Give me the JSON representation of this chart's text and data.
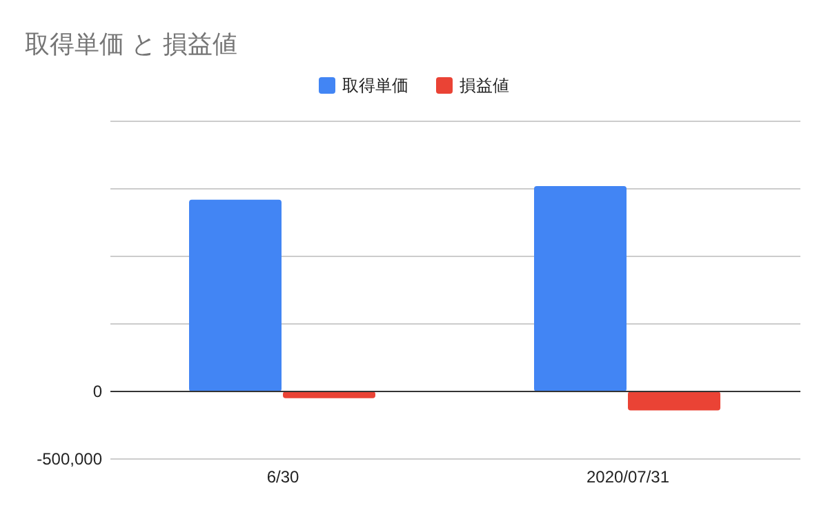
{
  "chart_data": {
    "type": "bar",
    "title": "取得単価 と 損益値",
    "categories": [
      "6/30",
      "2020/07/31"
    ],
    "series": [
      {
        "name": "取得単価",
        "color": "#4285f4",
        "values": [
          1420000,
          1520000
        ]
      },
      {
        "name": "損益値",
        "color": "#ea4335",
        "values": [
          -50000,
          -140000
        ]
      }
    ],
    "ylim": [
      -500000,
      2000000
    ],
    "yticks": [
      {
        "value": -500000,
        "label": "-500,000"
      },
      0,
      {
        "value": 500000,
        "label": null
      },
      {
        "value": 1000000,
        "label": null
      },
      {
        "value": 1500000,
        "label": null
      },
      {
        "value": 2000000,
        "label": null
      }
    ],
    "grid": "y",
    "legend": "top"
  }
}
